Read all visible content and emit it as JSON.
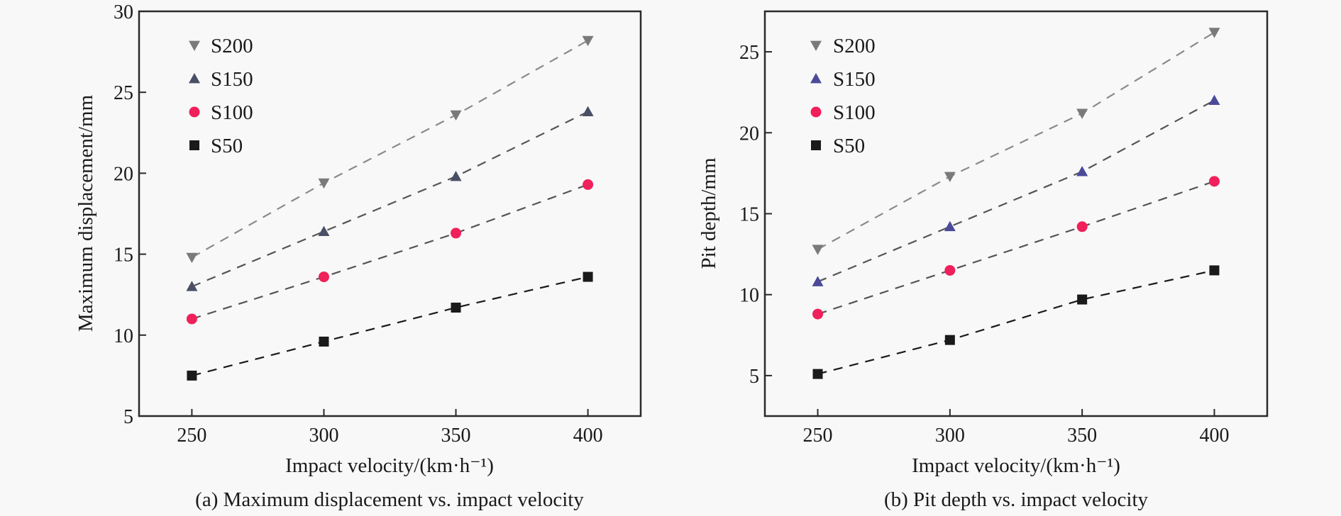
{
  "chart_data": [
    {
      "type": "scatter",
      "caption": "(a) Maximum displacement vs. impact velocity",
      "xlabel": "Impact velocity/(km·h⁻¹)",
      "ylabel": "Maximum displacement/mm",
      "xlim": [
        230,
        420
      ],
      "ylim": [
        5,
        30
      ],
      "xticks": [
        250,
        300,
        350,
        400
      ],
      "yticks": [
        5,
        10,
        15,
        20,
        25,
        30
      ],
      "grid": false,
      "legend_position": "top-left",
      "x": [
        250,
        300,
        350,
        400
      ],
      "series": [
        {
          "name": "S200",
          "marker": "triangle-down",
          "color": "#7a7a7a",
          "line_color": "#8a8a8a",
          "values": [
            14.8,
            19.4,
            23.6,
            28.2
          ]
        },
        {
          "name": "S150",
          "marker": "triangle-up",
          "color": "#4a4f66",
          "line_color": "#555555",
          "values": [
            13.0,
            16.4,
            19.8,
            23.8
          ]
        },
        {
          "name": "S100",
          "marker": "circle",
          "color": "#f0205a",
          "line_color": "#555555",
          "values": [
            11.0,
            13.6,
            16.3,
            19.3
          ]
        },
        {
          "name": "S50",
          "marker": "square",
          "color": "#1a1a1a",
          "line_color": "#1a1a1a",
          "values": [
            7.5,
            9.6,
            11.7,
            13.6
          ]
        }
      ]
    },
    {
      "type": "scatter",
      "caption": "(b) Pit depth vs. impact velocity",
      "xlabel": "Impact velocity/(km·h⁻¹)",
      "ylabel": "Pit depth/mm",
      "xlim": [
        230,
        420
      ],
      "ylim": [
        2.5,
        27.5
      ],
      "xticks": [
        250,
        300,
        350,
        400
      ],
      "yticks": [
        5,
        10,
        15,
        20,
        25
      ],
      "grid": false,
      "legend_position": "top-left",
      "x": [
        250,
        300,
        350,
        400
      ],
      "series": [
        {
          "name": "S200",
          "marker": "triangle-down",
          "color": "#7a7a7a",
          "line_color": "#8a8a8a",
          "values": [
            12.8,
            17.3,
            21.2,
            26.2
          ]
        },
        {
          "name": "S150",
          "marker": "triangle-up",
          "color": "#4b4a9a",
          "line_color": "#555555",
          "values": [
            10.8,
            14.2,
            17.6,
            22.0
          ]
        },
        {
          "name": "S100",
          "marker": "circle",
          "color": "#f0205a",
          "line_color": "#555555",
          "values": [
            8.8,
            11.5,
            14.2,
            17.0
          ]
        },
        {
          "name": "S50",
          "marker": "square",
          "color": "#1a1a1a",
          "line_color": "#1a1a1a",
          "values": [
            5.1,
            7.2,
            9.7,
            11.5
          ]
        }
      ]
    }
  ]
}
